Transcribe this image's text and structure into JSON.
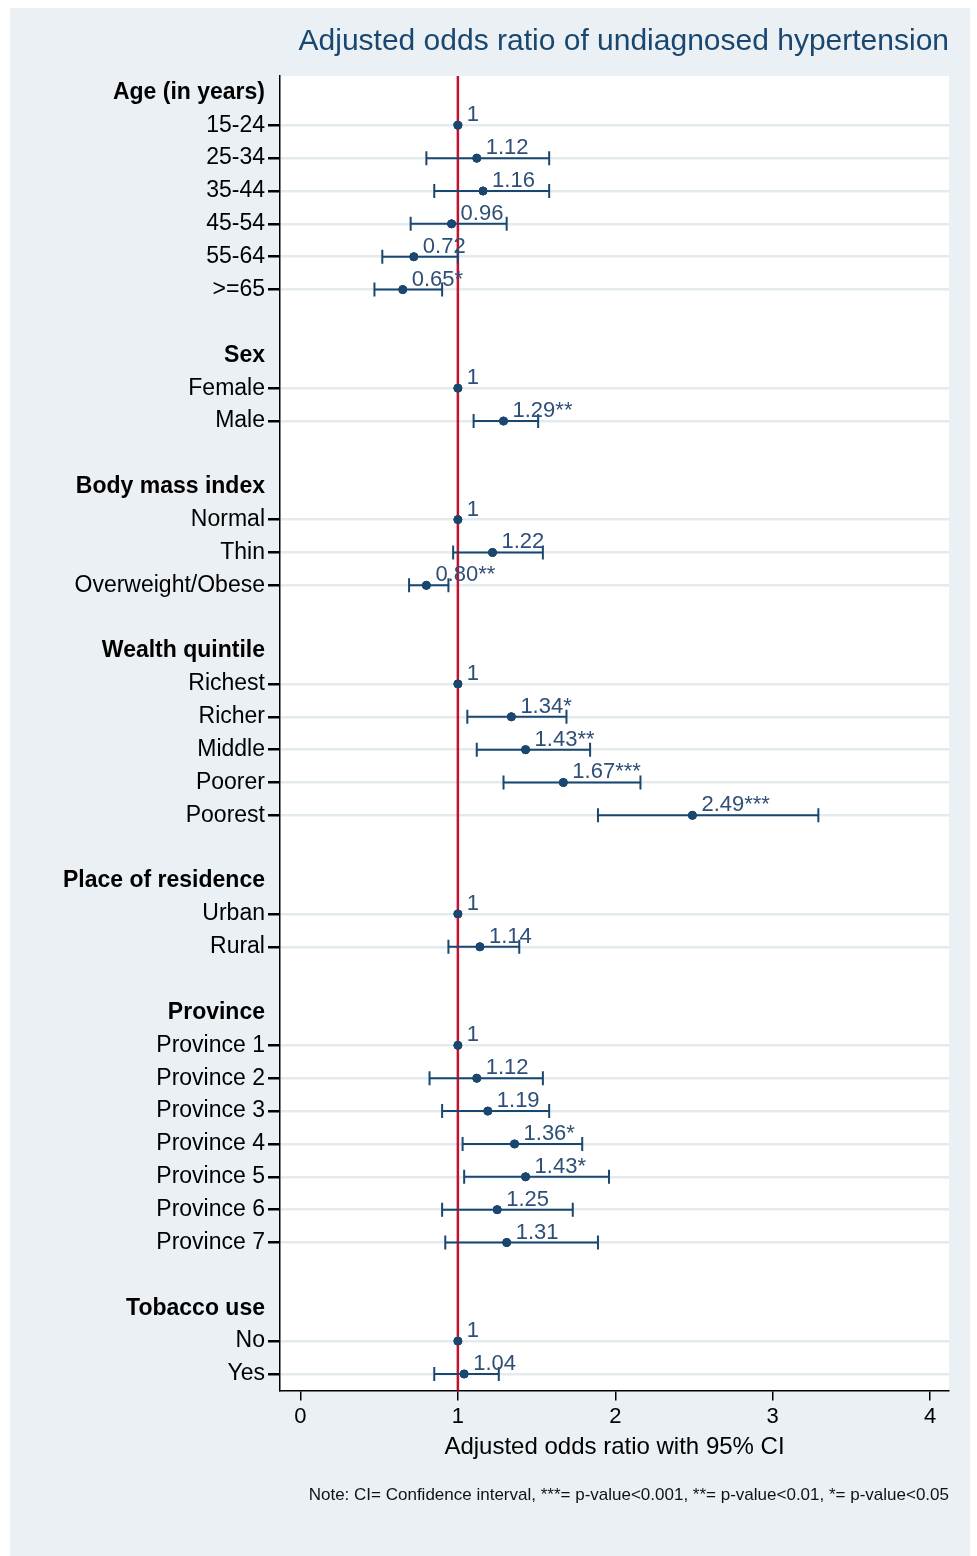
{
  "chart_data": {
    "type": "scatter",
    "orientation": "horizontal",
    "title": "Adjusted odds ratio of undiagnosed hypertension",
    "xlabel": "Adjusted odds ratio with 95% CI",
    "categories": [
      "Age (in years)",
      "15-24",
      "25-34",
      "35-44",
      "45-54",
      "55-64",
      ">=65",
      null,
      "Sex",
      "Female",
      "Male",
      null,
      "Body mass index",
      "Normal",
      "Thin",
      "Overweight/Obese",
      null,
      "Wealth quintile",
      "Richest",
      "Richer",
      "Middle",
      "Poorer",
      "Poorest",
      null,
      "Place of residence",
      "Urban",
      "Rural",
      null,
      "Province",
      "Province 1",
      "Province 2",
      "Province 3",
      "Province 4",
      "Province 5",
      "Province 6",
      "Province 7",
      null,
      "Tobacco use",
      "No",
      "Yes"
    ],
    "series": [
      {
        "color": "#1a476f",
        "values": [
          null,
          1,
          1.12,
          1.16,
          0.96,
          0.72,
          0.65,
          null,
          null,
          1,
          1.29,
          null,
          null,
          1,
          1.22,
          0.8,
          null,
          null,
          1,
          1.34,
          1.43,
          1.67,
          2.49,
          null,
          null,
          1,
          1.14,
          null,
          null,
          1,
          1.12,
          1.19,
          1.36,
          1.43,
          1.25,
          1.31,
          null,
          null,
          1,
          1.04
        ],
        "errors": [
          null,
          null,
          [
            0.8,
            1.58
          ],
          [
            0.85,
            1.58
          ],
          [
            0.7,
            1.31
          ],
          [
            0.52,
            1.0
          ],
          [
            0.47,
            0.9
          ],
          null,
          null,
          null,
          [
            1.1,
            1.51
          ],
          null,
          null,
          null,
          [
            0.97,
            1.54
          ],
          [
            0.69,
            0.94
          ],
          null,
          null,
          null,
          [
            1.06,
            1.69
          ],
          [
            1.12,
            1.84
          ],
          [
            1.29,
            2.16
          ],
          [
            1.89,
            3.29
          ],
          null,
          null,
          null,
          [
            0.94,
            1.39
          ],
          null,
          null,
          null,
          [
            0.82,
            1.54
          ],
          [
            0.9,
            1.58
          ],
          [
            1.03,
            1.79
          ],
          [
            1.04,
            1.96
          ],
          [
            0.9,
            1.73
          ],
          [
            0.92,
            1.89
          ],
          null,
          null,
          null,
          [
            0.85,
            1.26
          ]
        ],
        "value_labels": [
          null,
          "1",
          "1.12",
          "1.16",
          "0.96",
          "0.72",
          "0.65*",
          null,
          null,
          "1",
          "1.29**",
          null,
          null,
          "1",
          "1.22",
          "0.80**",
          null,
          null,
          "1",
          "1.34*",
          "1.43**",
          "1.67***",
          "2.49***",
          null,
          null,
          "1",
          "1.14",
          null,
          null,
          "1",
          "1.12",
          "1.19",
          "1.36*",
          "1.43*",
          "1.25",
          "1.31",
          null,
          null,
          "1",
          "1.04"
        ]
      }
    ],
    "xlim": [
      -0.13,
      4.12
    ],
    "xticks": [
      0,
      1,
      2,
      3,
      4
    ],
    "grid": "y",
    "marker": "circle",
    "legend": false,
    "ref_lines": [
      {
        "axis": "x",
        "value": 1,
        "color": "#c8102e"
      }
    ],
    "annotations": [
      "Note: CI= Confidence interval, ***= p-value<0.001, **= p-value<0.01, *= p-value<0.05"
    ]
  }
}
